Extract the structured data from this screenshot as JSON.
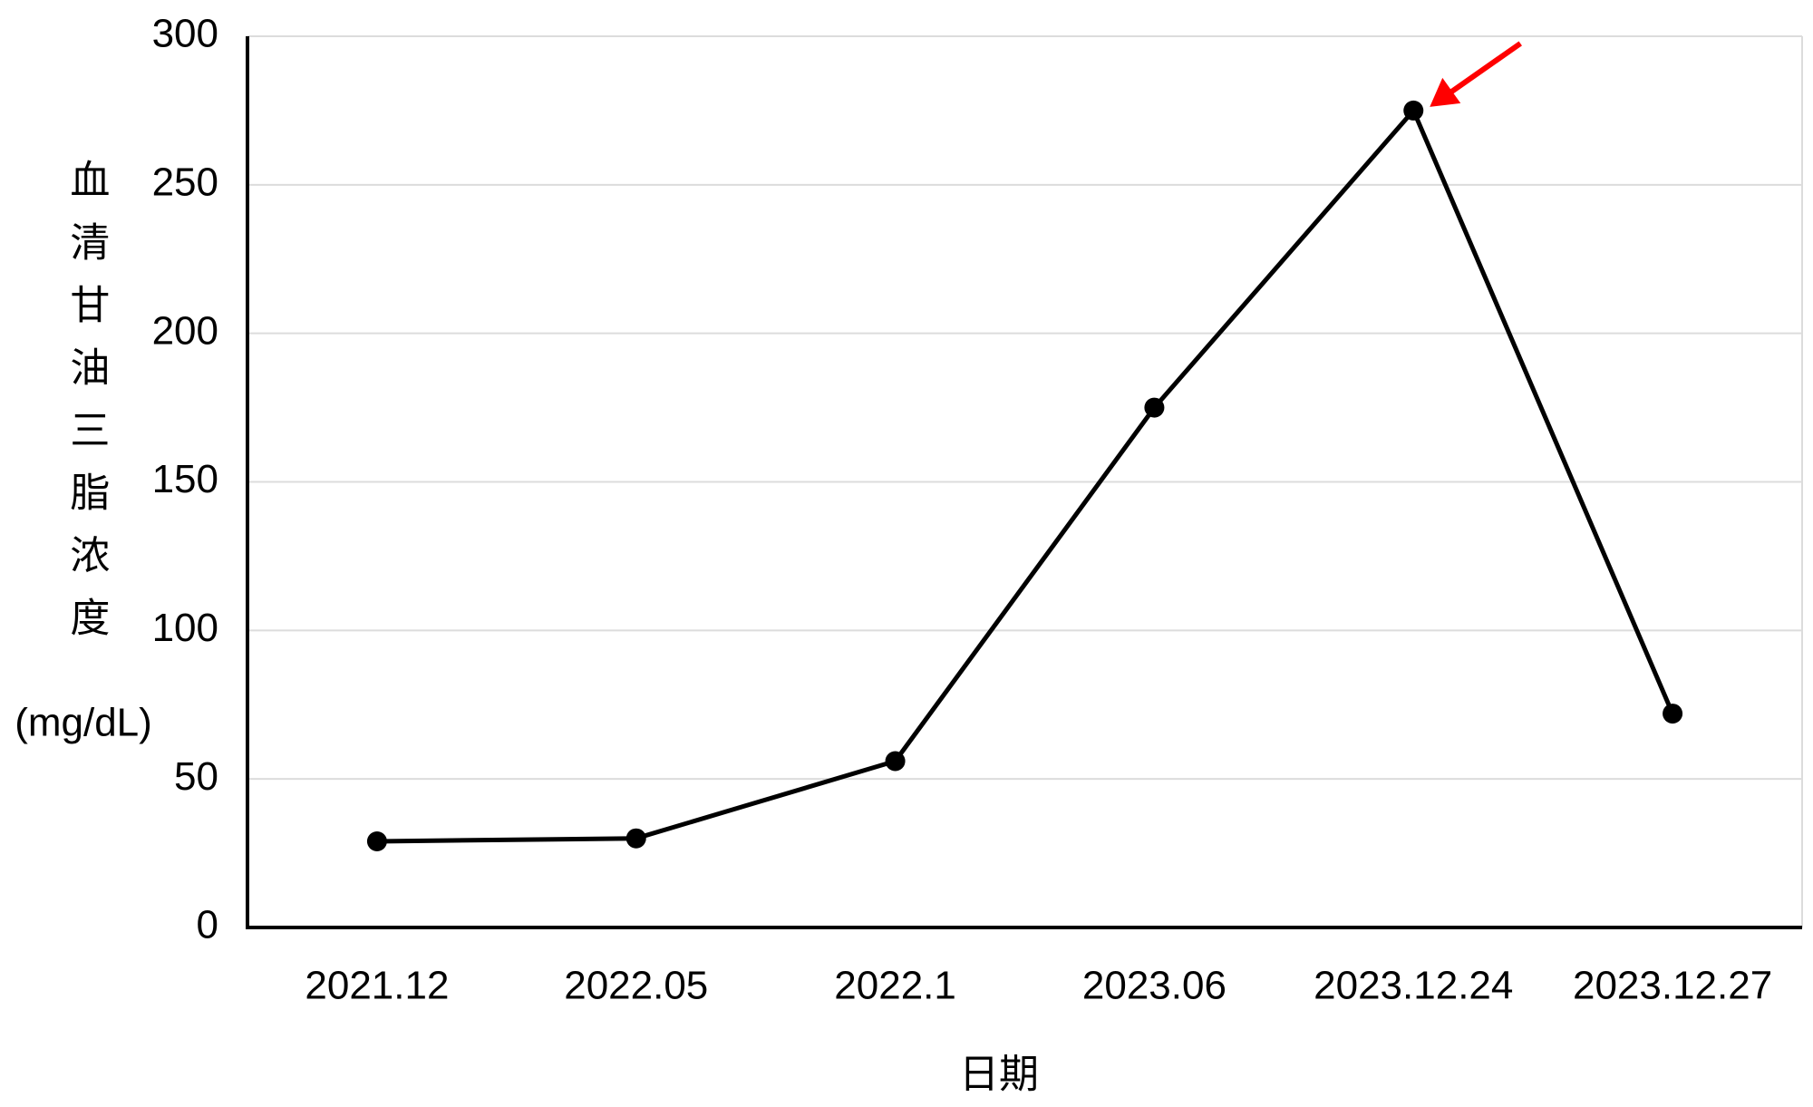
{
  "chart_data": {
    "type": "line",
    "y_label": "血清甘油三脂浓度",
    "y_unit": "(mg/dL)",
    "x_label": "日期",
    "categories": [
      "2021.12",
      "2022.05",
      "2022.1",
      "2023.06",
      "2023.12.24",
      "2023.12.27"
    ],
    "series": [
      {
        "name": "血清甘油三脂浓度",
        "color": "#000000",
        "values": [
          29,
          30,
          56,
          175,
          275,
          72
        ]
      }
    ],
    "ylim": [
      0,
      300
    ],
    "yticks": [
      0,
      50,
      100,
      150,
      200,
      250,
      300
    ],
    "grid": true
  }
}
